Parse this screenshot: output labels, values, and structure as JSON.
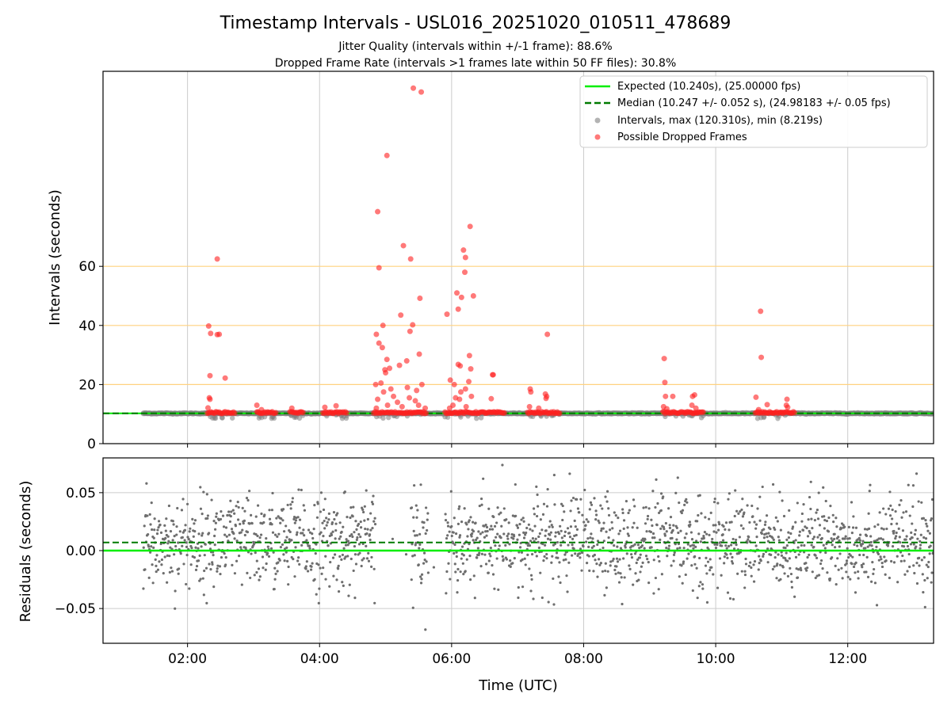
{
  "figure": {
    "title": "Timestamp Intervals - USL016_20251020_010511_478689",
    "subtitle_line1": "Jitter Quality (intervals within +/-1 frame): 88.6%",
    "subtitle_line2": "Dropped Frame Rate (intervals >1 frames late within 50 FF files): 30.8%"
  },
  "colors": {
    "expected": "#00ee00",
    "median": "#007a00",
    "intervals": "#808080",
    "dropped": "#ff2020",
    "reference_lines": "#ffd27f",
    "grid": "#cccccc"
  },
  "chart_data": [
    {
      "id": "intervals_panel",
      "type": "scatter",
      "ylabel": "Intervals (seconds)",
      "xlabel": "",
      "xlim_hours": [
        0.72,
        13.3
      ],
      "ylim": [
        0,
        126
      ],
      "yticks": [
        0,
        20,
        40,
        60
      ],
      "ytick_labels": [
        "0",
        "20",
        "40",
        "60"
      ],
      "reference_lines_y": [
        20,
        40,
        60
      ],
      "expected_interval": 10.24,
      "median_interval": 10.247,
      "grid": "vertical",
      "legend_position": "top-right",
      "legend": [
        {
          "label": "Expected (10.240s), (25.00000 fps)",
          "style": "line-solid",
          "color_key": "expected"
        },
        {
          "label": "Median (10.247 +/- 0.052 s), (24.98183 +/- 0.05 fps)",
          "style": "line-dashed",
          "color_key": "median"
        },
        {
          "label": "Intervals, max (120.310s), min (8.219s)",
          "style": "marker",
          "color_key": "intervals"
        },
        {
          "label": "Possible Dropped Frames",
          "style": "marker",
          "color_key": "dropped"
        }
      ],
      "interval_band": {
        "x_start": 1.33,
        "x_end": 13.3,
        "y": 10.24
      },
      "dropped_clusters": [
        {
          "x_start": 2.3,
          "x_end": 2.72
        },
        {
          "x_start": 3.05,
          "x_end": 3.35
        },
        {
          "x_start": 3.55,
          "x_end": 3.75
        },
        {
          "x_start": 4.05,
          "x_end": 4.42
        },
        {
          "x_start": 4.82,
          "x_end": 5.62
        },
        {
          "x_start": 5.9,
          "x_end": 6.8
        },
        {
          "x_start": 7.15,
          "x_end": 7.65
        },
        {
          "x_start": 9.2,
          "x_end": 9.82
        },
        {
          "x_start": 10.6,
          "x_end": 11.2
        }
      ],
      "dropped_points": [
        {
          "x": 2.32,
          "y": 39.8
        },
        {
          "x": 2.35,
          "y": 37.3
        },
        {
          "x": 2.45,
          "y": 62.5
        },
        {
          "x": 2.45,
          "y": 36.9
        },
        {
          "x": 2.48,
          "y": 37.0
        },
        {
          "x": 2.34,
          "y": 23.0
        },
        {
          "x": 2.57,
          "y": 22.2
        },
        {
          "x": 2.33,
          "y": 15.5
        },
        {
          "x": 2.34,
          "y": 15.0
        },
        {
          "x": 2.31,
          "y": 12.1
        },
        {
          "x": 3.05,
          "y": 13.0
        },
        {
          "x": 3.12,
          "y": 11.5
        },
        {
          "x": 3.58,
          "y": 12.0
        },
        {
          "x": 4.08,
          "y": 12.3
        },
        {
          "x": 4.25,
          "y": 12.8
        },
        {
          "x": 5.42,
          "y": 120.3
        },
        {
          "x": 5.54,
          "y": 119.0
        },
        {
          "x": 5.02,
          "y": 97.5
        },
        {
          "x": 4.88,
          "y": 78.5
        },
        {
          "x": 5.27,
          "y": 67.0
        },
        {
          "x": 5.38,
          "y": 62.5
        },
        {
          "x": 4.9,
          "y": 59.5
        },
        {
          "x": 5.52,
          "y": 49.2
        },
        {
          "x": 5.23,
          "y": 43.5
        },
        {
          "x": 5.41,
          "y": 40.2
        },
        {
          "x": 4.96,
          "y": 40.0
        },
        {
          "x": 5.37,
          "y": 38.0
        },
        {
          "x": 4.86,
          "y": 37.0
        },
        {
          "x": 4.9,
          "y": 34.0
        },
        {
          "x": 4.95,
          "y": 32.5
        },
        {
          "x": 5.51,
          "y": 30.3
        },
        {
          "x": 5.02,
          "y": 28.5
        },
        {
          "x": 5.32,
          "y": 28.0
        },
        {
          "x": 5.21,
          "y": 26.5
        },
        {
          "x": 5.06,
          "y": 25.5
        },
        {
          "x": 4.99,
          "y": 25.0
        },
        {
          "x": 5.0,
          "y": 24.0
        },
        {
          "x": 4.93,
          "y": 20.5
        },
        {
          "x": 4.85,
          "y": 20.0
        },
        {
          "x": 5.55,
          "y": 20.0
        },
        {
          "x": 5.33,
          "y": 19.0
        },
        {
          "x": 5.08,
          "y": 18.5
        },
        {
          "x": 5.47,
          "y": 18.0
        },
        {
          "x": 4.97,
          "y": 17.5
        },
        {
          "x": 5.12,
          "y": 16.0
        },
        {
          "x": 5.36,
          "y": 15.5
        },
        {
          "x": 4.88,
          "y": 15.0
        },
        {
          "x": 5.45,
          "y": 14.5
        },
        {
          "x": 5.18,
          "y": 14.0
        },
        {
          "x": 5.03,
          "y": 13.0
        },
        {
          "x": 5.5,
          "y": 13.0
        },
        {
          "x": 4.86,
          "y": 12.0
        },
        {
          "x": 5.25,
          "y": 12.5
        },
        {
          "x": 5.6,
          "y": 12.0
        },
        {
          "x": 6.28,
          "y": 73.5
        },
        {
          "x": 6.18,
          "y": 65.5
        },
        {
          "x": 6.21,
          "y": 63.0
        },
        {
          "x": 6.2,
          "y": 58.0
        },
        {
          "x": 6.08,
          "y": 51.0
        },
        {
          "x": 6.33,
          "y": 50.0
        },
        {
          "x": 6.15,
          "y": 49.5
        },
        {
          "x": 6.1,
          "y": 45.5
        },
        {
          "x": 5.93,
          "y": 43.8
        },
        {
          "x": 6.27,
          "y": 29.8
        },
        {
          "x": 6.1,
          "y": 26.8
        },
        {
          "x": 6.13,
          "y": 26.3
        },
        {
          "x": 6.29,
          "y": 25.3
        },
        {
          "x": 6.62,
          "y": 23.3
        },
        {
          "x": 6.63,
          "y": 23.3
        },
        {
          "x": 5.98,
          "y": 21.5
        },
        {
          "x": 6.26,
          "y": 21.0
        },
        {
          "x": 6.04,
          "y": 20.0
        },
        {
          "x": 6.21,
          "y": 18.5
        },
        {
          "x": 6.14,
          "y": 17.5
        },
        {
          "x": 6.3,
          "y": 16.0
        },
        {
          "x": 6.06,
          "y": 15.5
        },
        {
          "x": 6.12,
          "y": 15.0
        },
        {
          "x": 6.6,
          "y": 15.2
        },
        {
          "x": 6.02,
          "y": 13.0
        },
        {
          "x": 6.22,
          "y": 12.5
        },
        {
          "x": 5.97,
          "y": 12.0
        },
        {
          "x": 7.45,
          "y": 37.0
        },
        {
          "x": 7.19,
          "y": 18.5
        },
        {
          "x": 7.2,
          "y": 17.5
        },
        {
          "x": 7.42,
          "y": 16.8
        },
        {
          "x": 7.44,
          "y": 16.0
        },
        {
          "x": 7.43,
          "y": 15.3
        },
        {
          "x": 7.18,
          "y": 12.5
        },
        {
          "x": 7.32,
          "y": 12.0
        },
        {
          "x": 9.22,
          "y": 28.8
        },
        {
          "x": 9.23,
          "y": 20.7
        },
        {
          "x": 9.24,
          "y": 16.0
        },
        {
          "x": 9.35,
          "y": 16.0
        },
        {
          "x": 9.68,
          "y": 16.5
        },
        {
          "x": 9.65,
          "y": 16.0
        },
        {
          "x": 9.64,
          "y": 13.0
        },
        {
          "x": 9.21,
          "y": 12.5
        },
        {
          "x": 9.7,
          "y": 12.0
        },
        {
          "x": 9.26,
          "y": 11.8
        },
        {
          "x": 10.68,
          "y": 44.8
        },
        {
          "x": 10.69,
          "y": 29.2
        },
        {
          "x": 10.61,
          "y": 15.7
        },
        {
          "x": 11.08,
          "y": 15.0
        },
        {
          "x": 10.78,
          "y": 13.2
        },
        {
          "x": 11.07,
          "y": 13.0
        },
        {
          "x": 11.09,
          "y": 12.3
        },
        {
          "x": 10.65,
          "y": 11.5
        }
      ]
    },
    {
      "id": "residuals_panel",
      "type": "scatter",
      "ylabel": "Residuals (seconds)",
      "xlabel": "Time (UTC)",
      "xlim_hours": [
        0.72,
        13.3
      ],
      "ylim": [
        -0.08,
        0.08
      ],
      "yticks": [
        -0.05,
        0.0,
        0.05
      ],
      "ytick_labels": [
        "−0.05",
        "0.00",
        "0.05"
      ],
      "xticks_hours": [
        2,
        4,
        6,
        8,
        10,
        12
      ],
      "xtick_labels": [
        "02:00",
        "04:00",
        "06:00",
        "08:00",
        "10:00",
        "12:00"
      ],
      "expected_residual": 0.0,
      "median_residual": 0.007,
      "grid": "both",
      "residual_spread": {
        "center": 0.007,
        "sigma": 0.02,
        "x_start": 1.33,
        "x_end": 13.3
      },
      "data_gaps_hours": [
        [
          4.85,
          5.38
        ],
        [
          5.65,
          5.9
        ]
      ]
    }
  ]
}
